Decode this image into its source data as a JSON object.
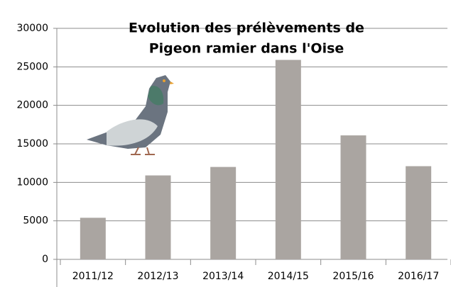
{
  "chart_data": {
    "type": "bar",
    "title": [
      "Evolution des prélèvements de",
      "Pigeon ramier dans l'Oise"
    ],
    "categories": [
      "2011/12",
      "2012/13",
      "2013/14",
      "2014/15",
      "2015/16",
      "2016/17"
    ],
    "values": [
      5400,
      10900,
      12000,
      25900,
      16100,
      12100
    ],
    "color": "#aaa5a1",
    "ylim": [
      0,
      30000
    ],
    "yticks": [
      0,
      5000,
      10000,
      15000,
      20000,
      25000,
      30000
    ],
    "grid": true
  }
}
